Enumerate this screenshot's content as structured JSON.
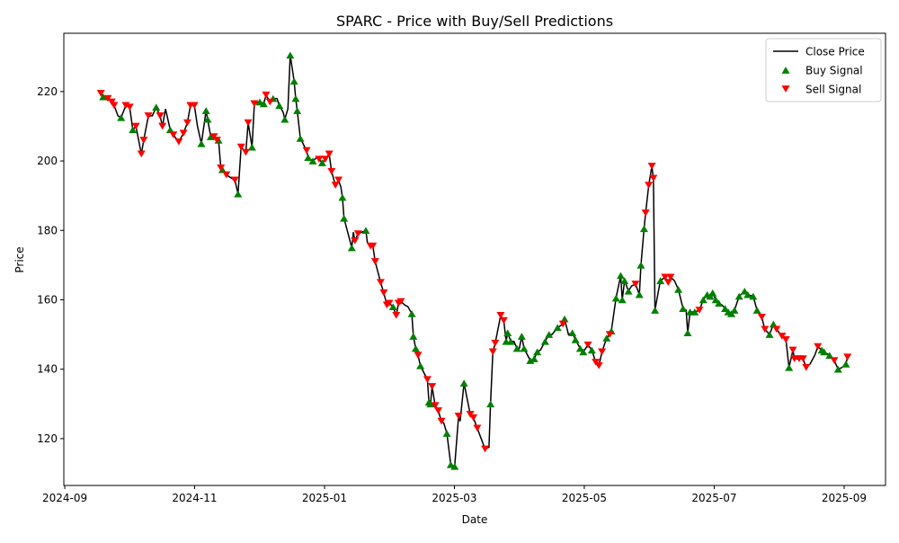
{
  "chart_data": {
    "type": "line",
    "title": "SPARC - Price with Buy/Sell Predictions",
    "x_label": "Date",
    "y_label": "Price",
    "xlim": [
      2024.6655,
      2025.7198
    ],
    "ylim": [
      106.5,
      236.8
    ],
    "xticks": [
      {
        "value": 2024.6667,
        "label": "2024-09"
      },
      {
        "value": 2024.8333,
        "label": "2024-11"
      },
      {
        "value": 2025.0,
        "label": "2025-01"
      },
      {
        "value": 2025.1667,
        "label": "2025-03"
      },
      {
        "value": 2025.3333,
        "label": "2025-05"
      },
      {
        "value": 2025.5,
        "label": "2025-07"
      },
      {
        "value": 2025.6667,
        "label": "2025-09"
      }
    ],
    "yticks": [
      120,
      140,
      160,
      180,
      200,
      220
    ],
    "legend": "upper right",
    "series": [
      {
        "name": "Close Price",
        "color": "#000000",
        "style": "line",
        "x": [
          2024.713,
          2024.716,
          2024.722,
          2024.727,
          2024.73,
          2024.735,
          2024.739,
          2024.745,
          2024.75,
          2024.754,
          2024.758,
          2024.765,
          2024.768,
          2024.774,
          2024.779,
          2024.784,
          2024.789,
          2024.792,
          2024.796,
          2024.802,
          2024.806,
          2024.813,
          2024.819,
          2024.824,
          2024.828,
          2024.833,
          2024.837,
          2024.842,
          2024.848,
          2024.85,
          2024.854,
          2024.858,
          2024.862,
          2024.864,
          2024.867,
          2024.869,
          2024.874,
          2024.881,
          2024.885,
          2024.889,
          2024.893,
          2024.899,
          2024.902,
          2024.907,
          2024.91,
          2024.917,
          2024.922,
          2024.925,
          2024.93,
          2024.934,
          2024.939,
          2024.942,
          2024.947,
          2024.949,
          2024.953,
          2024.956,
          2024.961,
          2024.963,
          2024.965,
          2024.969,
          2024.977,
          2024.979,
          2024.985,
          2024.99,
          2024.993,
          2024.997,
          2025.001,
          2025.006,
          2025.009,
          2025.014,
          2025.018,
          2025.021,
          2025.023,
          2025.025,
          2025.035,
          2025.037,
          2025.039,
          2025.043,
          2025.048,
          2025.053,
          2025.055,
          2025.059,
          2025.062,
          2025.065,
          2025.072,
          2025.076,
          2025.08,
          2025.083,
          2025.088,
          2025.092,
          2025.095,
          2025.098,
          2025.103,
          2025.107,
          2025.112,
          2025.114,
          2025.117,
          2025.12,
          2025.123,
          2025.132,
          2025.134,
          2025.136,
          2025.138,
          2025.142,
          2025.146,
          2025.15,
          2025.153,
          2025.157,
          2025.162,
          2025.167,
          2025.172,
          2025.174,
          2025.179,
          2025.187,
          2025.191,
          2025.196,
          2025.206,
          2025.211,
          2025.213,
          2025.216,
          2025.219,
          2025.226,
          2025.23,
          2025.233,
          2025.235,
          2025.239,
          2025.243,
          2025.247,
          2025.25,
          2025.253,
          2025.256,
          2025.264,
          2025.269,
          2025.273,
          2025.277,
          2025.283,
          2025.288,
          2025.292,
          2025.299,
          2025.306,
          2025.308,
          2025.313,
          2025.318,
          2025.322,
          2025.328,
          2025.332,
          2025.338,
          2025.343,
          2025.348,
          2025.352,
          2025.356,
          2025.362,
          2025.366,
          2025.368,
          2025.374,
          2025.38,
          2025.382,
          2025.385,
          2025.39,
          2025.394,
          2025.399,
          2025.404,
          2025.406,
          2025.41,
          2025.412,
          2025.416,
          2025.42,
          2025.422,
          2025.424,
          2025.428,
          2025.431,
          2025.437,
          2025.441,
          2025.444,
          2025.449,
          2025.454,
          2025.46,
          2025.464,
          2025.466,
          2025.469,
          2025.475,
          2025.481,
          2025.486,
          2025.491,
          2025.495,
          2025.498,
          2025.502,
          2025.506,
          2025.51,
          2025.514,
          2025.518,
          2025.522,
          2025.526,
          2025.532,
          2025.539,
          2025.543,
          2025.55,
          2025.555,
          2025.561,
          2025.565,
          2025.571,
          2025.576,
          2025.58,
          2025.587,
          2025.592,
          2025.596,
          2025.601,
          2025.603,
          2025.609,
          2025.614,
          2025.618,
          2025.623,
          2025.629,
          2025.633,
          2025.638,
          2025.641,
          2025.648,
          2025.654,
          2025.659,
          2025.664,
          2025.669,
          2025.671
        ],
        "values": [
          219.5,
          218.5,
          218,
          217,
          216,
          213,
          212.5,
          216,
          215.5,
          209,
          210,
          202,
          206,
          213,
          213,
          215.5,
          213,
          210,
          215,
          209,
          207.5,
          205.5,
          208,
          211,
          216,
          216,
          210,
          205,
          214.5,
          212,
          207,
          207,
          206,
          206,
          198,
          197.5,
          196,
          195,
          194.5,
          190.5,
          204,
          202.5,
          211,
          204,
          216.5,
          217,
          216.5,
          219,
          217,
          218,
          218,
          216,
          214,
          212,
          215,
          230.5,
          223,
          218,
          214.5,
          206.5,
          203,
          201,
          200,
          201,
          200.5,
          199.5,
          200.5,
          202,
          197,
          193,
          194.5,
          192.5,
          189.5,
          183.5,
          175,
          179.5,
          177,
          179,
          179.5,
          180,
          176.5,
          175.5,
          175.5,
          171,
          165,
          162,
          158.5,
          159,
          158,
          155.5,
          159,
          159.5,
          158.5,
          158,
          156,
          149.5,
          146,
          144,
          141,
          137,
          130.5,
          130,
          135,
          129.5,
          128,
          125,
          124.5,
          121.5,
          112.5,
          112,
          126.5,
          125,
          136,
          127,
          126,
          123,
          117,
          117.5,
          130,
          145,
          147.5,
          155.5,
          154,
          148,
          150.5,
          148,
          148,
          146,
          146,
          149.5,
          146,
          142.5,
          143,
          145,
          145.5,
          148,
          150,
          150,
          152,
          153,
          154.5,
          150,
          150.5,
          148.5,
          146,
          145,
          147,
          145.5,
          142,
          141,
          145,
          149,
          150,
          151,
          160.5,
          167,
          160,
          165.5,
          162.5,
          164,
          164.5,
          161.5,
          170,
          180.5,
          185,
          193,
          198.5,
          195,
          157,
          162,
          165.5,
          166.5,
          165,
          166.5,
          165.5,
          163,
          157.5,
          157,
          150.5,
          156.5,
          156.5,
          157,
          160,
          161.5,
          161,
          162,
          160,
          159,
          158.5,
          157.5,
          156.5,
          156,
          157,
          161,
          162.5,
          161.5,
          161,
          157,
          155,
          151.5,
          150,
          153,
          151.5,
          149.5,
          148.5,
          140.5,
          145.5,
          143,
          143,
          143,
          140.5,
          141.5,
          144,
          146.5,
          145.5,
          145,
          144,
          142.5,
          140,
          140.5,
          141.5,
          143.5
        ]
      },
      {
        "name": "Buy Signal",
        "color": "#008000",
        "style": "scatter",
        "marker": "triangle-up",
        "x": [
          2024.716,
          2024.739,
          2024.754,
          2024.784,
          2024.802,
          2024.842,
          2024.848,
          2024.85,
          2024.854,
          2024.864,
          2024.869,
          2024.889,
          2024.907,
          2024.917,
          2024.922,
          2024.934,
          2024.942,
          2024.949,
          2024.956,
          2024.961,
          2024.963,
          2024.965,
          2024.969,
          2024.979,
          2024.985,
          2024.997,
          2025.023,
          2025.025,
          2025.035,
          2025.053,
          2025.088,
          2025.112,
          2025.114,
          2025.117,
          2025.123,
          2025.134,
          2025.136,
          2025.157,
          2025.162,
          2025.167,
          2025.179,
          2025.213,
          2025.233,
          2025.235,
          2025.239,
          2025.247,
          2025.253,
          2025.256,
          2025.264,
          2025.269,
          2025.273,
          2025.283,
          2025.288,
          2025.299,
          2025.308,
          2025.318,
          2025.322,
          2025.328,
          2025.332,
          2025.343,
          2025.362,
          2025.368,
          2025.374,
          2025.38,
          2025.382,
          2025.385,
          2025.39,
          2025.404,
          2025.406,
          2025.41,
          2025.424,
          2025.431,
          2025.454,
          2025.46,
          2025.466,
          2025.469,
          2025.475,
          2025.486,
          2025.491,
          2025.495,
          2025.498,
          2025.502,
          2025.506,
          2025.514,
          2025.518,
          2025.522,
          2025.526,
          2025.532,
          2025.539,
          2025.543,
          2025.55,
          2025.555,
          2025.571,
          2025.576,
          2025.596,
          2025.638,
          2025.641,
          2025.648,
          2025.659,
          2025.669
        ],
        "values": [
          218.5,
          212.5,
          209,
          215.5,
          209,
          205,
          214.5,
          212,
          207,
          206,
          197.5,
          190.5,
          204,
          217,
          216.5,
          218,
          216,
          212,
          230.5,
          223,
          218,
          214.5,
          206.5,
          201,
          200,
          199.5,
          189.5,
          183.5,
          175,
          180,
          158,
          156,
          149.5,
          146,
          141,
          130.5,
          130,
          121.5,
          112.5,
          112,
          136,
          130,
          148,
          150.5,
          148,
          146,
          149.5,
          146,
          142.5,
          143,
          145,
          148,
          150,
          152,
          154.5,
          150.5,
          148.5,
          146,
          145,
          145.5,
          149,
          151,
          160.5,
          167,
          160,
          165.5,
          162.5,
          161.5,
          170,
          180.5,
          157,
          165.5,
          163,
          157.5,
          150.5,
          156.5,
          156.5,
          160,
          161.5,
          161,
          162,
          160,
          159,
          157.5,
          156.5,
          156,
          157,
          161,
          162.5,
          161.5,
          161,
          157,
          150,
          153,
          140.5,
          145.5,
          145,
          144,
          140,
          141.5
        ]
      },
      {
        "name": "Sell Signal",
        "color": "#ff0000",
        "style": "scatter",
        "marker": "triangle-down",
        "x": [
          2024.713,
          2024.722,
          2024.727,
          2024.73,
          2024.745,
          2024.75,
          2024.758,
          2024.765,
          2024.768,
          2024.774,
          2024.789,
          2024.792,
          2024.806,
          2024.813,
          2024.819,
          2024.824,
          2024.828,
          2024.833,
          2024.858,
          2024.862,
          2024.867,
          2024.874,
          2024.885,
          2024.893,
          2024.899,
          2024.902,
          2024.91,
          2024.925,
          2024.93,
          2024.977,
          2024.993,
          2025.001,
          2025.006,
          2025.009,
          2025.014,
          2025.018,
          2025.039,
          2025.043,
          2025.059,
          2025.062,
          2025.065,
          2025.072,
          2025.076,
          2025.08,
          2025.083,
          2025.092,
          2025.095,
          2025.098,
          2025.12,
          2025.132,
          2025.138,
          2025.142,
          2025.146,
          2025.15,
          2025.172,
          2025.187,
          2025.191,
          2025.196,
          2025.206,
          2025.216,
          2025.219,
          2025.226,
          2025.23,
          2025.306,
          2025.338,
          2025.348,
          2025.352,
          2025.356,
          2025.366,
          2025.399,
          2025.412,
          2025.416,
          2025.42,
          2025.422,
          2025.437,
          2025.441,
          2025.444,
          2025.481,
          2025.561,
          2025.565,
          2025.58,
          2025.587,
          2025.592,
          2025.601,
          2025.603,
          2025.609,
          2025.614,
          2025.618,
          2025.633,
          2025.654,
          2025.671
        ],
        "values": [
          219.5,
          218,
          217,
          216,
          216,
          215.5,
          210,
          202,
          206,
          213,
          213,
          210,
          207.5,
          205.5,
          208,
          211,
          216,
          216,
          207,
          206,
          198,
          196,
          194.5,
          204,
          202.5,
          211,
          216.5,
          219,
          217,
          203,
          200.5,
          200.5,
          202,
          197,
          193,
          194.5,
          177,
          179,
          175.5,
          175.5,
          171,
          165,
          162,
          158.5,
          159,
          155.5,
          159,
          159.5,
          144,
          137,
          135,
          129.5,
          128,
          125,
          126.5,
          127,
          126,
          123,
          117,
          145,
          147.5,
          155.5,
          154,
          153,
          147,
          142,
          141,
          145,
          150,
          164.5,
          185,
          193,
          198.5,
          195,
          166.5,
          165,
          166.5,
          157,
          155,
          151.5,
          151.5,
          149.5,
          148.5,
          145.5,
          143,
          143,
          143,
          140.5,
          146.5,
          142.5,
          143.5
        ]
      }
    ]
  }
}
